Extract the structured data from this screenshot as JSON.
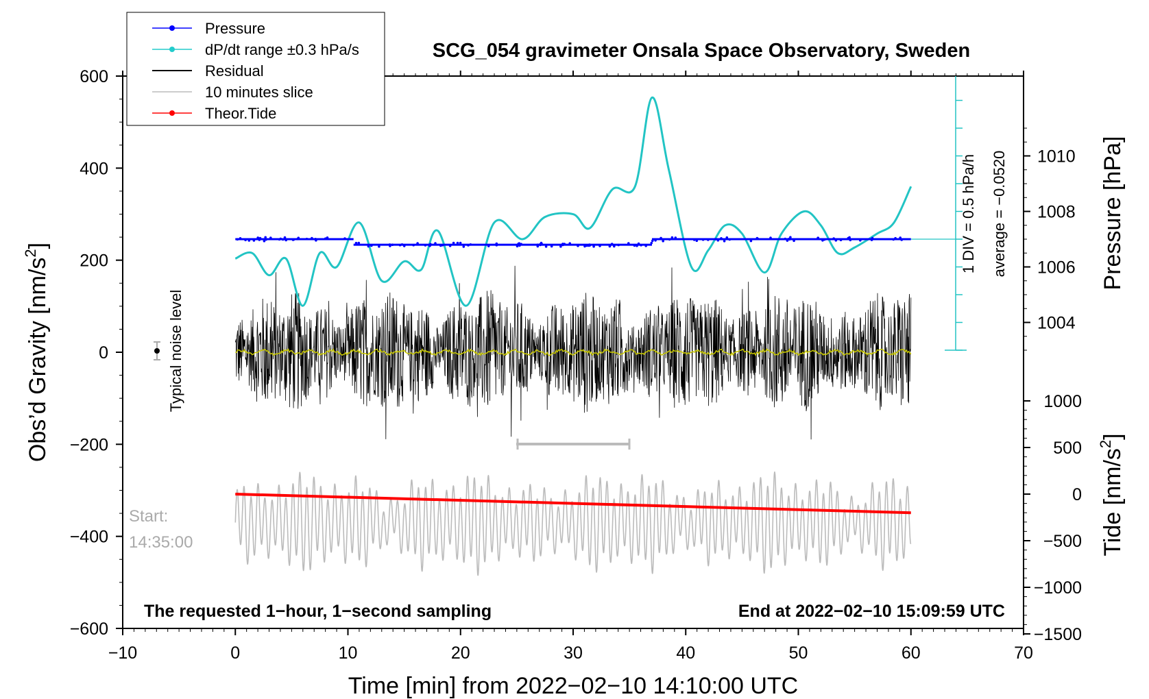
{
  "chart_data": {
    "type": "line",
    "title": "SCG_054 gravimeter Onsala Space Observatory, Sweden",
    "xlabel": "Time [min] from 2022−02−10 14:10:00 UTC",
    "ylabel_left": "Obs’d Gravity [nm/s²]",
    "ylabel_left_main": "Obs’d Gravity [nm/s",
    "ylabel_left_sup": "2",
    "ylabel_left_end": "]",
    "ylabel_right_top": "Pressure [hPa]",
    "ylabel_right_bottom": "Tide [nm/s²]",
    "ylabel_right_bottom_main": "Tide [nm/s",
    "ylabel_right_bottom_sup": "2",
    "ylabel_right_bottom_end": "]",
    "xlim": [
      -10,
      70
    ],
    "ylim": [
      -600,
      600
    ],
    "pressure_lim": [
      1001.2,
      1012.1
    ],
    "tide_lim": [
      -1500,
      1500
    ],
    "x_ticks": [
      "−10",
      "0",
      "10",
      "20",
      "30",
      "40",
      "50",
      "60",
      "70"
    ],
    "x_tick_values": [
      -10,
      0,
      10,
      20,
      30,
      40,
      50,
      60,
      70
    ],
    "y_ticks": [
      "600",
      "400",
      "200",
      "0",
      "−200",
      "−400",
      "−600"
    ],
    "y_tick_values": [
      600,
      400,
      200,
      0,
      -200,
      -400,
      -600
    ],
    "pressure_ticks": [
      "1010",
      "1008",
      "1006",
      "1004"
    ],
    "pressure_tick_values": [
      1010,
      1008,
      1006,
      1004
    ],
    "tide_ticks": [
      "1000",
      "500",
      "0",
      "−500",
      "−1000",
      "−1500"
    ],
    "tide_tick_values": [
      1000,
      500,
      0,
      -500,
      -1000,
      -1500
    ],
    "legend": {
      "position": "top-left",
      "entries": [
        {
          "label": "Pressure",
          "color": "#0000ff",
          "marker": true
        },
        {
          "label": "dP/dt range ±0.3 hPa/s",
          "color": "#22cccc",
          "marker": true
        },
        {
          "label": "Residual",
          "color": "#000000",
          "marker": false
        },
        {
          "label": "10 minutes slice",
          "color": "#bbbbbb",
          "marker": false
        },
        {
          "label": "Theor.Tide",
          "color": "#ff0000",
          "marker": true
        }
      ]
    },
    "colors": {
      "pressure": "#0000ff",
      "dpdt": "#22c4c4",
      "residual": "#000000",
      "smooth": "#c8c800",
      "slice": "#bbbbbb",
      "tide": "#ff0000",
      "annotation_gray": "#aaaaaa"
    },
    "series": [
      {
        "name": "Pressure",
        "unit": "hPa",
        "x": [
          0,
          10.5,
          37,
          60
        ],
        "values": [
          1007.0,
          1006.8,
          1006.8,
          1007.0
        ]
      },
      {
        "name": "dP/dt",
        "unit": "hPa (1 DIV = 0.5 hPa/h, plotted about pressure axis)",
        "x": [
          0,
          1.5,
          3,
          4.5,
          6,
          7.5,
          9,
          11,
          13,
          15,
          16.5,
          18,
          20.5,
          23,
          25.5,
          27.5,
          30,
          31.5,
          33.5,
          35.5,
          37,
          38.5,
          40.5,
          42,
          43.5,
          45,
          47,
          48.5,
          50.5,
          52,
          53.5,
          55,
          57,
          58.5,
          60
        ],
        "values": [
          1006.3,
          1006.5,
          1005.7,
          1006.3,
          1004.6,
          1006.5,
          1006.0,
          1007.6,
          1005.5,
          1006.2,
          1005.9,
          1007.3,
          1004.6,
          1007.6,
          1007.0,
          1007.8,
          1007.9,
          1007.4,
          1008.8,
          1008.9,
          1012.1,
          1009.5,
          1006.0,
          1006.6,
          1007.5,
          1007.2,
          1005.8,
          1007.2,
          1008.0,
          1007.5,
          1006.5,
          1006.7,
          1007.2,
          1007.6,
          1008.9
        ]
      },
      {
        "name": "Residual",
        "unit": "nm/s²",
        "mean": 0,
        "range": [
          -230,
          240
        ]
      },
      {
        "name": "10 minutes slice",
        "unit": "nm/s² (display)",
        "range": [
          -550,
          -190
        ]
      },
      {
        "name": "Theor.Tide",
        "unit": "nm/s²",
        "x": [
          0,
          60
        ],
        "values": [
          0,
          -200
        ]
      }
    ],
    "annotations": {
      "noise_label": "Typical noise level",
      "noise_value": 0,
      "noise_x": -7,
      "start_label_1": "Start:",
      "start_label_2": "14:35:00",
      "slice_range": [
        25,
        35
      ],
      "div_label": "1 DIV = 0.5 hPa/h",
      "avg_label": "average = −0.0520",
      "bottom_left": "The requested 1−hour, 1−second sampling",
      "bottom_right": "End at 2022−02−10 15:09:59 UTC"
    }
  }
}
